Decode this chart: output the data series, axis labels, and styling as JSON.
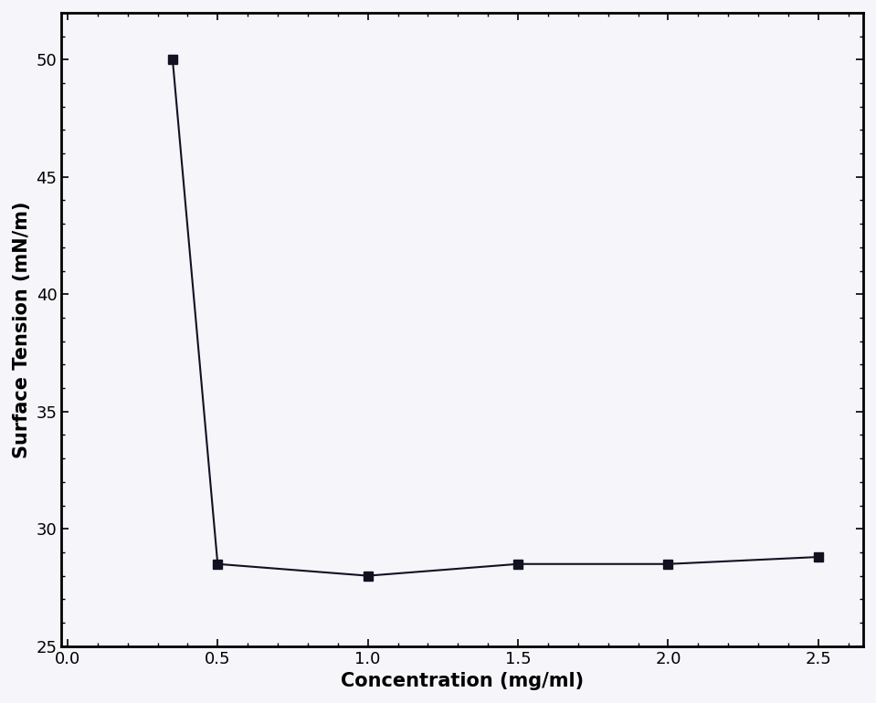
{
  "x": [
    0.35,
    0.5,
    1.0,
    1.5,
    2.0,
    2.5
  ],
  "y": [
    50.0,
    28.5,
    28.0,
    28.5,
    28.5,
    28.8
  ],
  "xlabel": "Concentration (mg/ml)",
  "ylabel": "Surface Tension (mN/m)",
  "xlim": [
    -0.02,
    2.65
  ],
  "ylim": [
    25,
    52
  ],
  "xticks": [
    0.0,
    0.5,
    1.0,
    1.5,
    2.0,
    2.5
  ],
  "yticks": [
    25,
    30,
    35,
    40,
    45,
    50
  ],
  "marker": "s",
  "marker_size": 7,
  "line_color": "#111122",
  "marker_color": "#111122",
  "line_width": 1.5,
  "background_color": "#f5f5fa",
  "xlabel_fontsize": 15,
  "ylabel_fontsize": 15,
  "tick_fontsize": 13,
  "xlabel_fontweight": "bold",
  "ylabel_fontweight": "bold"
}
